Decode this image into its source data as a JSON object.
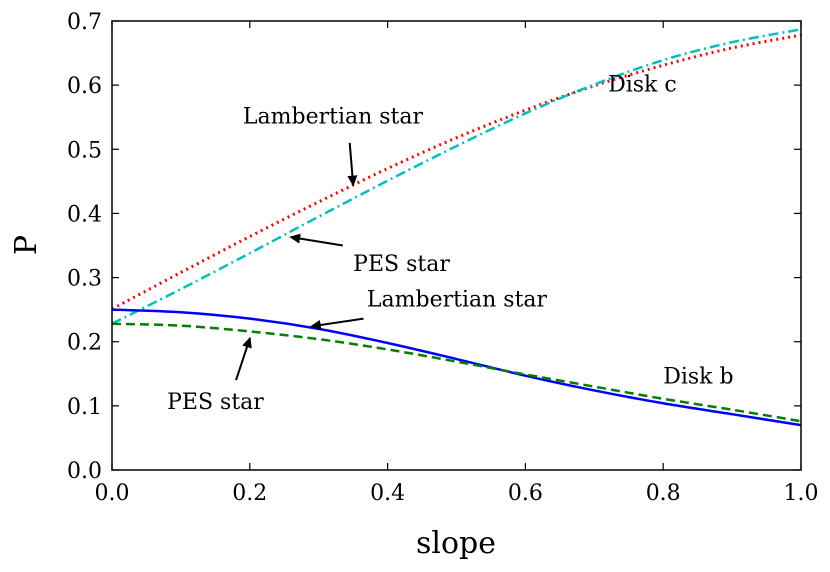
{
  "chart_data": {
    "type": "line",
    "title": "",
    "xlabel": "slope",
    "ylabel": "P",
    "xlim": [
      0.0,
      1.0
    ],
    "ylim": [
      0.0,
      0.7
    ],
    "xticks": [
      "0.0",
      "0.2",
      "0.4",
      "0.6",
      "0.8",
      "1.0"
    ],
    "yticks": [
      "0.0",
      "0.1",
      "0.2",
      "0.3",
      "0.4",
      "0.5",
      "0.6",
      "0.7"
    ],
    "xtick_values": [
      0.0,
      0.2,
      0.4,
      0.6,
      0.8,
      1.0
    ],
    "ytick_values": [
      0.0,
      0.1,
      0.2,
      0.3,
      0.4,
      0.5,
      0.6,
      0.7
    ],
    "grid": false,
    "x": [
      0.0,
      0.1,
      0.2,
      0.3,
      0.4,
      0.5,
      0.6,
      0.7,
      0.8,
      0.9,
      1.0
    ],
    "series": [
      {
        "name": "Disk c, Lambertian star",
        "color": "#ff0000",
        "style": "dotted",
        "values": [
          0.251,
          0.308,
          0.364,
          0.418,
          0.47,
          0.518,
          0.561,
          0.599,
          0.631,
          0.658,
          0.678
        ]
      },
      {
        "name": "Disk c, PES star",
        "color": "#00bfbf",
        "style": "dashdot",
        "values": [
          0.228,
          0.282,
          0.338,
          0.395,
          0.451,
          0.505,
          0.556,
          0.601,
          0.639,
          0.667,
          0.687
        ]
      },
      {
        "name": "Disk b, Lambertian star",
        "color": "#0000ff",
        "style": "solid",
        "values": [
          0.25,
          0.246,
          0.236,
          0.22,
          0.198,
          0.173,
          0.147,
          0.124,
          0.104,
          0.087,
          0.07
        ]
      },
      {
        "name": "Disk b, PES star",
        "color": "#008000",
        "style": "dashed",
        "values": [
          0.228,
          0.225,
          0.216,
          0.204,
          0.188,
          0.169,
          0.149,
          0.13,
          0.111,
          0.094,
          0.076
        ]
      }
    ],
    "annotations": [
      {
        "text": "Lambertian star",
        "tx": 0.19,
        "ty": 0.54,
        "ax": 0.35,
        "ay": 0.445,
        "sx": 0.345,
        "sy": 0.51
      },
      {
        "text": "PES star",
        "tx": 0.35,
        "ty": 0.31,
        "ax": 0.26,
        "ay": 0.363,
        "sx": 0.335,
        "sy": 0.35
      },
      {
        "text": "Lambertian star",
        "tx": 0.37,
        "ty": 0.255,
        "ax": 0.29,
        "ay": 0.224,
        "sx": 0.365,
        "sy": 0.236
      },
      {
        "text": "PES star",
        "tx": 0.08,
        "ty": 0.095,
        "ax": 0.2,
        "ay": 0.205,
        "sx": 0.18,
        "sy": 0.14
      },
      {
        "text": "Disk c",
        "tx": 0.72,
        "ty": 0.59,
        "ax": null,
        "ay": null,
        "sx": null,
        "sy": null
      },
      {
        "text": "Disk b",
        "tx": 0.8,
        "ty": 0.135,
        "ax": null,
        "ay": null,
        "sx": null,
        "sy": null
      }
    ]
  }
}
